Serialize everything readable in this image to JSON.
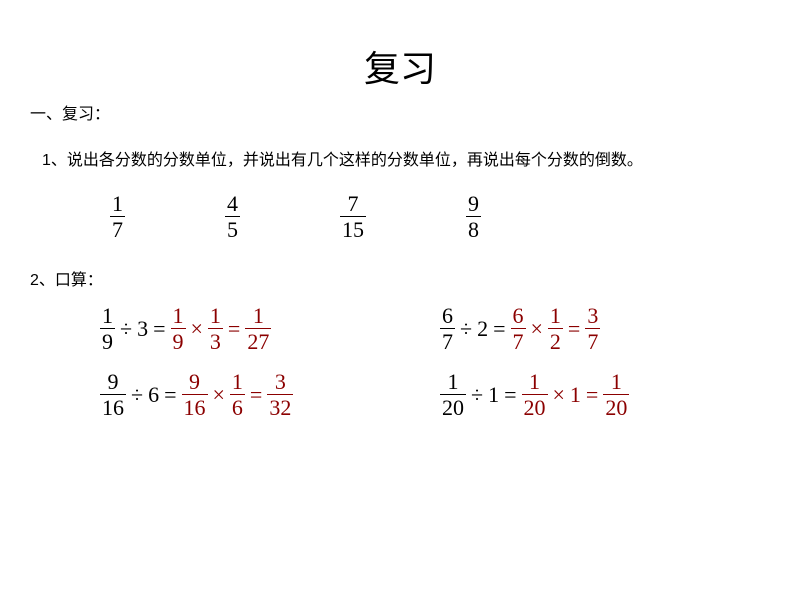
{
  "title": "复习",
  "heading1": "一、复习：",
  "problem1": "1、说出各分数的分数单位，并说出有几个这样的分数单位，再说出每个分数的倒数。",
  "fractions": [
    {
      "n": "1",
      "d": "7"
    },
    {
      "n": "4",
      "d": "5"
    },
    {
      "n": "7",
      "d": "15"
    },
    {
      "n": "9",
      "d": "8"
    }
  ],
  "problem2": "2、口算：",
  "equations": [
    {
      "lhs": {
        "n": "1",
        "d": "9",
        "op": "÷",
        "int": "3"
      },
      "rhs": {
        "f1n": "1",
        "f1d": "9",
        "op": "×",
        "f2n": "1",
        "f2d": "3",
        "resn": "1",
        "resd": "27"
      }
    },
    {
      "lhs": {
        "n": "6",
        "d": "7",
        "op": "÷",
        "int": "2"
      },
      "rhs": {
        "f1n": "6",
        "f1d": "7",
        "op": "×",
        "f2n": "1",
        "f2d": "2",
        "resn": "3",
        "resd": "7"
      }
    },
    {
      "lhs": {
        "n": "9",
        "d": "16",
        "op": "÷",
        "int": "6"
      },
      "rhs": {
        "f1n": "9",
        "f1d": "16",
        "op": "×",
        "f2n": "1",
        "f2d": "6",
        "resn": "3",
        "resd": "32"
      }
    },
    {
      "lhs": {
        "n": "1",
        "d": "20",
        "op": "÷",
        "int": "1"
      },
      "rhs": {
        "f1n": "1",
        "f1d": "20",
        "op": "×",
        "int2": "1",
        "resn": "1",
        "resd": "20"
      }
    }
  ],
  "colors": {
    "answer": "#8b0000",
    "text": "#000000",
    "bg": "#ffffff"
  }
}
